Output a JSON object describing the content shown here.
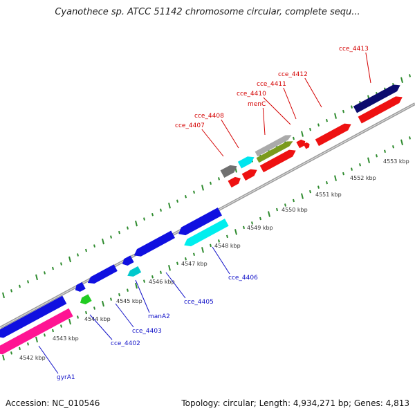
{
  "title": "Cyanothece sp. ATCC 51142 chromosome circular, complete sequ...",
  "footer": {
    "accession": "Accession: NC_010546",
    "summary": "Topology: circular; Length: 4,934,271 bp; Genes: 4,813"
  },
  "colors": {
    "backbone": "#8a8a8a",
    "tick_dots": "#2e8b2e",
    "red_label": "#d40000",
    "blue_label": "#1010c8"
  },
  "scale_ticks": [
    "4542 kbp",
    "4543 kbp",
    "4544 kbp",
    "4545 kbp",
    "4546 kbp",
    "4547 kbp",
    "4548 kbp",
    "4549 kbp",
    "4550 kbp",
    "4551 kbp",
    "4552 kbp",
    "4553 kbp"
  ],
  "upper_labels": [
    "cce_4413",
    "cce_4412",
    "cce_4411",
    "cce_4410",
    "menC",
    "cce_4408",
    "cce_4407"
  ],
  "lower_labels": [
    "cce_4406",
    "cce_4405",
    "manA2",
    "cce_4403",
    "cce_4402",
    "gyrA1"
  ]
}
